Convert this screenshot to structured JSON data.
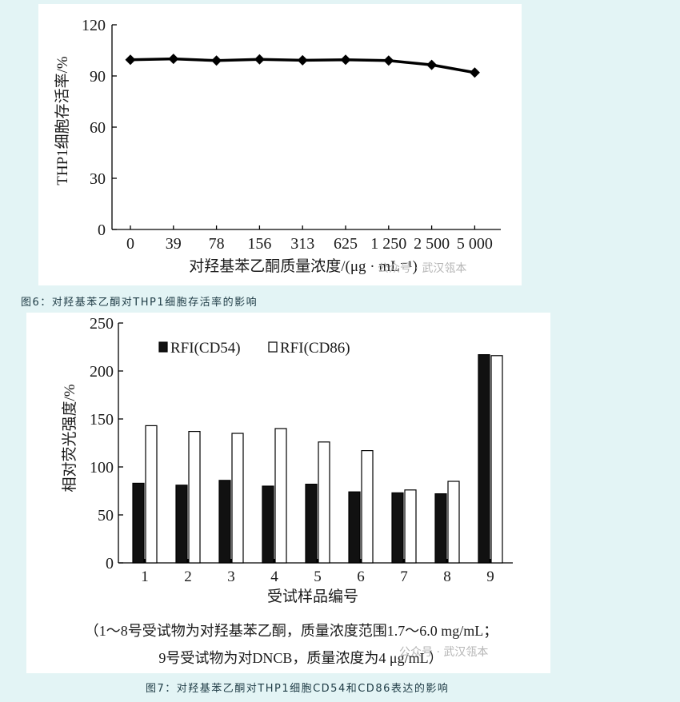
{
  "figure6": {
    "caption": "图6：对羟基苯乙酮对THP1细胞存活率的影响",
    "watermark": "公众号 · 武汉瓴本",
    "chart_data": {
      "type": "line",
      "xlabel": "对羟基苯乙酮质量浓度/(μg · mL⁻¹)",
      "ylabel": "THP1细胞存活率/%",
      "categories": [
        "0",
        "39",
        "78",
        "156",
        "313",
        "625",
        "1 250",
        "2 500",
        "5 000"
      ],
      "values": [
        99.5,
        100,
        99,
        99.7,
        99.2,
        99.5,
        99,
        96.5,
        92
      ],
      "ylim": [
        0,
        120
      ],
      "yticks": [
        0,
        30,
        60,
        90,
        120
      ],
      "marker": "diamond",
      "color": "#000000"
    }
  },
  "figure7": {
    "caption": "图7：对羟基苯乙酮对THP1细胞CD54和CD86表达的影响",
    "watermark": "公众号 · 武汉瓴本",
    "note_line1": "（1～8号受试物为对羟基苯乙酮，质量浓度范围1.7～6.0 mg/mL；",
    "note_line2": "9号受试物为对DNCB，质量浓度为4 μg/mL）",
    "chart_data": {
      "type": "bar",
      "xlabel": "受试样品编号",
      "ylabel": "相对荧光强度/%",
      "categories": [
        "1",
        "2",
        "3",
        "4",
        "5",
        "6",
        "7",
        "8",
        "9"
      ],
      "series": [
        {
          "name": "RFI(CD54)",
          "values": [
            83,
            81,
            86,
            80,
            82,
            74,
            73,
            72,
            217
          ],
          "color": "#111111"
        },
        {
          "name": "RFI(CD86)",
          "values": [
            143,
            137,
            135,
            140,
            126,
            117,
            76,
            85,
            216
          ],
          "color": "#ffffff"
        }
      ],
      "ylim": [
        0,
        250
      ],
      "yticks": [
        0,
        50,
        100,
        150,
        200,
        250
      ],
      "legend": "top-left"
    }
  }
}
